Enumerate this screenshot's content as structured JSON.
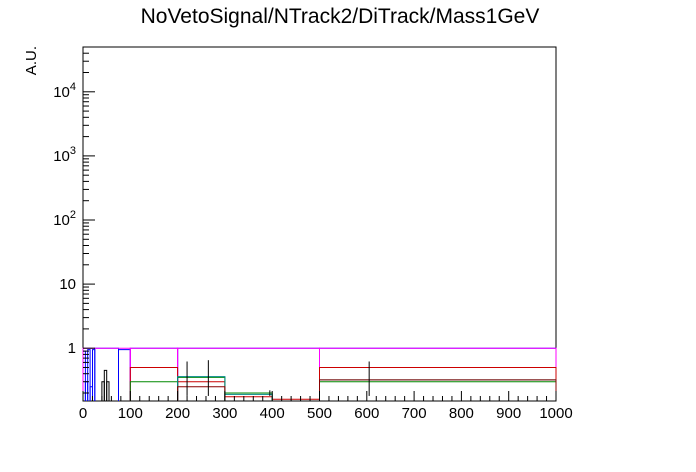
{
  "chart_data": {
    "type": "line",
    "title": "NoVetoSignal/NTrack2/DiTrack/Mass1GeV",
    "xlabel": "",
    "ylabel": "A.U.",
    "xlim": [
      0,
      1000
    ],
    "ylim": [
      0.15,
      50000
    ],
    "yscale": "log",
    "grid": false,
    "x_ticks": [
      0,
      100,
      200,
      300,
      400,
      500,
      600,
      700,
      800,
      900,
      1000
    ],
    "x_tick_labels": [
      "0",
      "100",
      "200",
      "300",
      "400",
      "500",
      "600",
      "700",
      "800",
      "900",
      "1000"
    ],
    "y_ticks": [
      1,
      10,
      100,
      1000,
      10000
    ],
    "y_tick_labels": [
      {
        "base": "1",
        "exp": ""
      },
      {
        "base": "10",
        "exp": ""
      },
      {
        "base": "10",
        "exp": "2"
      },
      {
        "base": "10",
        "exp": "3"
      },
      {
        "base": "10",
        "exp": "4"
      }
    ],
    "series": [
      {
        "color": "#0000ff",
        "bins": [
          [
            0,
            5,
            0.9
          ],
          [
            5,
            10,
            0.3
          ],
          [
            10,
            15,
            0.95
          ],
          [
            15,
            20,
            0.25
          ],
          [
            20,
            25,
            0.95
          ],
          [
            25,
            75,
            1.0
          ],
          [
            75,
            100,
            0.95
          ],
          [
            100,
            200,
            1.0
          ],
          [
            200,
            500,
            1.0
          ],
          [
            500,
            1000,
            1.0
          ]
        ]
      },
      {
        "color": "#ff00ff",
        "bins": [
          [
            0,
            100,
            1.0
          ],
          [
            100,
            200,
            1.0
          ],
          [
            200,
            500,
            1.0
          ],
          [
            500,
            1000,
            1.0
          ]
        ]
      },
      {
        "color": "#cc0000",
        "bins": [
          [
            100,
            200,
            0.5
          ],
          [
            200,
            300,
            0.3
          ],
          [
            300,
            400,
            0.175
          ],
          [
            400,
            500,
            0.16
          ],
          [
            500,
            1000,
            0.5
          ]
        ]
      },
      {
        "color": "#008800",
        "bins": [
          [
            100,
            200,
            0.3
          ],
          [
            200,
            300,
            0.35
          ],
          [
            300,
            400,
            0.2
          ],
          [
            500,
            1000,
            0.3
          ]
        ]
      },
      {
        "color": "#008888",
        "bins": [
          [
            200,
            300,
            0.36
          ],
          [
            300,
            400,
            0.19
          ],
          [
            500,
            1000,
            0.32
          ]
        ]
      },
      {
        "color": "#880000",
        "bins": [
          [
            200,
            300,
            0.25
          ],
          [
            500,
            1000,
            0.32
          ]
        ]
      },
      {
        "color": "#000000",
        "bins": [
          [
            40,
            45,
            0.3
          ],
          [
            45,
            50,
            0.45
          ],
          [
            50,
            55,
            0.3
          ]
        ],
        "error_bars": [
          [
            220,
            0.18,
            0.62
          ],
          [
            265,
            0.18,
            0.65
          ],
          [
            395,
            0.18,
            0.22
          ],
          [
            605,
            0.18,
            0.62
          ]
        ]
      }
    ]
  }
}
